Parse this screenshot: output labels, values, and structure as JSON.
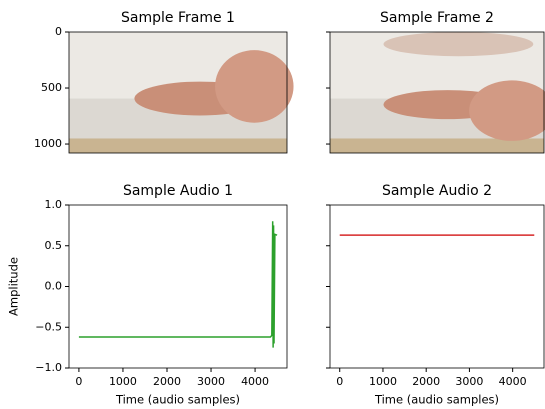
{
  "chart_data": [
    {
      "type": "image",
      "title": "Sample Frame 1",
      "xlim": [
        0,
        1920
      ],
      "ylim": [
        1080,
        0
      ],
      "yticks": [
        0,
        500,
        1000
      ]
    },
    {
      "type": "image",
      "title": "Sample Frame 2",
      "xlim": [
        0,
        1920
      ],
      "ylim": [
        1080,
        0
      ],
      "sharey": true
    },
    {
      "type": "line",
      "title": "Sample Audio 1",
      "xlabel": "Time (audio samples)",
      "ylabel": "Amplitude",
      "x": [
        0,
        4350,
        4380,
        4400,
        4410,
        4420,
        4430,
        4450,
        4500
      ],
      "values": [
        -0.62,
        -0.62,
        -0.6,
        0.8,
        -0.75,
        0.75,
        -0.7,
        0.64,
        0.63
      ],
      "color": "#2ca02c",
      "xlim": [
        -225,
        4725
      ],
      "ylim": [
        -1,
        1
      ],
      "xticks": [
        0,
        1000,
        2000,
        3000,
        4000
      ],
      "yticks": [
        {
          "value": -1,
          "label": "−1.0"
        },
        {
          "value": -0.5,
          "label": "−0.5"
        },
        {
          "value": 0,
          "label": "0.0"
        },
        0.5,
        {
          "value": 1,
          "label": "1.0"
        }
      ]
    },
    {
      "type": "line",
      "title": "Sample Audio 2",
      "xlabel": "Time (audio samples)",
      "x": [
        0,
        4500
      ],
      "values": [
        0.63,
        0.63
      ],
      "color": "#d62728",
      "xlim": [
        -225,
        4725
      ],
      "ylim": [
        -1,
        1
      ],
      "xticks": [
        0,
        1000,
        2000,
        3000,
        4000
      ],
      "sharey": true
    }
  ]
}
